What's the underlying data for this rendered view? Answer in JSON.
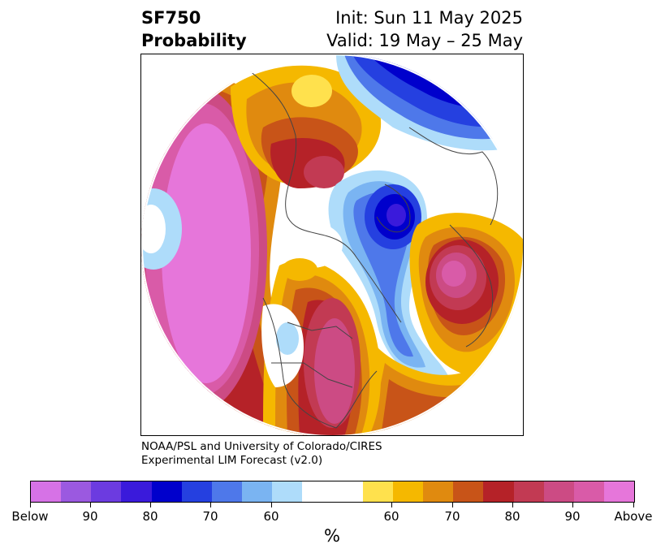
{
  "header": {
    "title_line1": "SF750",
    "title_line2": "Probability",
    "init_text": "Init: Sun 11 May 2025",
    "valid_text": "Valid: 19 May – 25 May"
  },
  "credit": {
    "line1": "NOAA/PSL and University of Colorado/CIRES",
    "line2": "Experimental LIM Forecast (v2.0)"
  },
  "colorbar": {
    "colors": [
      "#d672e6",
      "#9b59e0",
      "#6c3be0",
      "#3a1adb",
      "#0000cc",
      "#2540e0",
      "#4e78ea",
      "#7ab4f2",
      "#aedcfa",
      "#ffffff",
      "#ffffff",
      "#ffe14d",
      "#f5b800",
      "#e08a0f",
      "#c85418",
      "#b52228",
      "#c23a53",
      "#cc4b84",
      "#d95ba8",
      "#e676da"
    ],
    "labels": [
      "Below",
      "90",
      "80",
      "70",
      "60",
      "60",
      "70",
      "80",
      "90",
      "Above"
    ],
    "unit": "%"
  }
}
